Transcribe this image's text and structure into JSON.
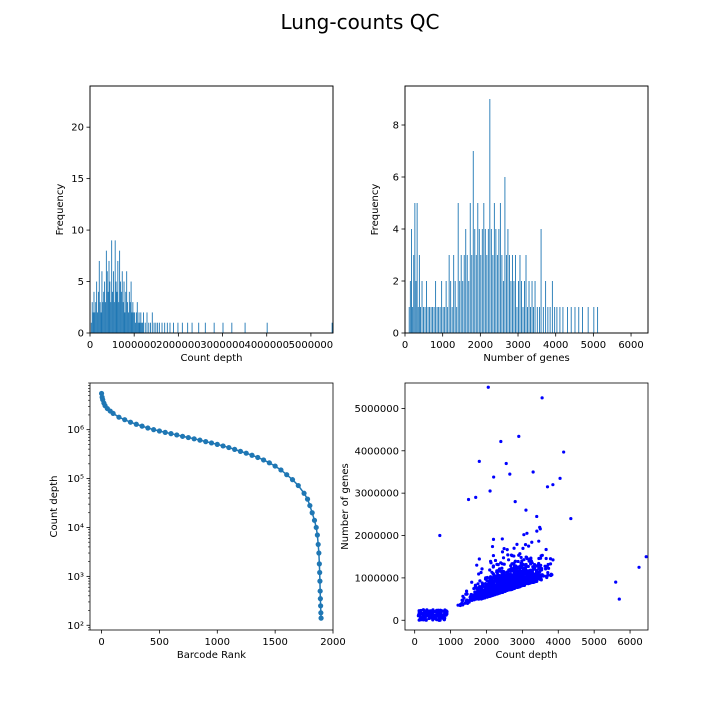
{
  "figure": {
    "title": "Lung-counts QC"
  },
  "colors": {
    "bar": "#1f77b4",
    "rank": "#1f77b4",
    "scatter": "#0000ff"
  },
  "chart_data": [
    {
      "id": "hist_count_depth",
      "type": "bar",
      "title": "",
      "xlabel": "Count depth",
      "ylabel": "Frequency",
      "xlim": [
        0,
        5500000
      ],
      "ylim": [
        0,
        24
      ],
      "xticks": [
        0,
        1000000,
        2000000,
        3000000,
        4000000,
        5000000
      ],
      "yticks": [
        0,
        5,
        10,
        15,
        20
      ],
      "bin_width": 10000,
      "bins": [
        [
          20000,
          1
        ],
        [
          40000,
          3
        ],
        [
          60000,
          2
        ],
        [
          80000,
          4
        ],
        [
          100000,
          2
        ],
        [
          120000,
          3
        ],
        [
          140000,
          5
        ],
        [
          160000,
          2
        ],
        [
          180000,
          4
        ],
        [
          200000,
          7
        ],
        [
          220000,
          3
        ],
        [
          240000,
          2
        ],
        [
          260000,
          6
        ],
        [
          280000,
          3
        ],
        [
          300000,
          4
        ],
        [
          320000,
          5
        ],
        [
          340000,
          3
        ],
        [
          360000,
          8
        ],
        [
          380000,
          6
        ],
        [
          400000,
          4
        ],
        [
          420000,
          7
        ],
        [
          440000,
          5
        ],
        [
          460000,
          3
        ],
        [
          480000,
          9
        ],
        [
          500000,
          4
        ],
        [
          520000,
          6
        ],
        [
          540000,
          3
        ],
        [
          560000,
          9
        ],
        [
          580000,
          5
        ],
        [
          600000,
          4
        ],
        [
          620000,
          7
        ],
        [
          640000,
          3
        ],
        [
          660000,
          8
        ],
        [
          680000,
          5
        ],
        [
          700000,
          4
        ],
        [
          720000,
          6
        ],
        [
          740000,
          3
        ],
        [
          760000,
          5
        ],
        [
          780000,
          2
        ],
        [
          800000,
          4
        ],
        [
          820000,
          6
        ],
        [
          840000,
          3
        ],
        [
          860000,
          2
        ],
        [
          880000,
          4
        ],
        [
          900000,
          3
        ],
        [
          920000,
          5
        ],
        [
          940000,
          2
        ],
        [
          960000,
          3
        ],
        [
          980000,
          2
        ],
        [
          1000000,
          2
        ],
        [
          1020000,
          1
        ],
        [
          1040000,
          2
        ],
        [
          1060000,
          3
        ],
        [
          1080000,
          1
        ],
        [
          1100000,
          2
        ],
        [
          1120000,
          1
        ],
        [
          1140000,
          2
        ],
        [
          1160000,
          1
        ],
        [
          1180000,
          1
        ],
        [
          1200000,
          2
        ],
        [
          1240000,
          1
        ],
        [
          1280000,
          2
        ],
        [
          1320000,
          1
        ],
        [
          1360000,
          1
        ],
        [
          1400000,
          2
        ],
        [
          1440000,
          1
        ],
        [
          1480000,
          1
        ],
        [
          1520000,
          1
        ],
        [
          1560000,
          1
        ],
        [
          1620000,
          1
        ],
        [
          1680000,
          1
        ],
        [
          1740000,
          1
        ],
        [
          1800000,
          1
        ],
        [
          1880000,
          1
        ],
        [
          1980000,
          1
        ],
        [
          2080000,
          1
        ],
        [
          2200000,
          1
        ],
        [
          2300000,
          1
        ],
        [
          2450000,
          1
        ],
        [
          2600000,
          1
        ],
        [
          2800000,
          1
        ],
        [
          3000000,
          1
        ],
        [
          3200000,
          1
        ],
        [
          3500000,
          1
        ],
        [
          4000000,
          1
        ],
        [
          5470000,
          1
        ]
      ]
    },
    {
      "id": "hist_num_genes",
      "type": "bar",
      "title": "",
      "xlabel": "Number of genes",
      "ylabel": "Frequency",
      "xlim": [
        0,
        6450
      ],
      "ylim": [
        0,
        9.5
      ],
      "xticks": [
        0,
        1000,
        2000,
        3000,
        4000,
        5000,
        6000
      ],
      "yticks": [
        0,
        2,
        4,
        6,
        8
      ],
      "bin_width": 12,
      "bins": [
        [
          100,
          1
        ],
        [
          130,
          2
        ],
        [
          160,
          4
        ],
        [
          190,
          1
        ],
        [
          220,
          3
        ],
        [
          250,
          5
        ],
        [
          280,
          2
        ],
        [
          310,
          5
        ],
        [
          340,
          1
        ],
        [
          370,
          3
        ],
        [
          400,
          1
        ],
        [
          440,
          2
        ],
        [
          480,
          1
        ],
        [
          520,
          1
        ],
        [
          560,
          2
        ],
        [
          600,
          1
        ],
        [
          640,
          1
        ],
        [
          680,
          1
        ],
        [
          720,
          1
        ],
        [
          760,
          1
        ],
        [
          800,
          2
        ],
        [
          840,
          1
        ],
        [
          880,
          1
        ],
        [
          920,
          1
        ],
        [
          960,
          2
        ],
        [
          1000,
          1
        ],
        [
          1040,
          1
        ],
        [
          1080,
          2
        ],
        [
          1120,
          1
        ],
        [
          1160,
          3
        ],
        [
          1200,
          2
        ],
        [
          1240,
          1
        ],
        [
          1280,
          3
        ],
        [
          1320,
          2
        ],
        [
          1360,
          1
        ],
        [
          1400,
          5
        ],
        [
          1440,
          2
        ],
        [
          1480,
          3
        ],
        [
          1520,
          2
        ],
        [
          1560,
          3
        ],
        [
          1600,
          4
        ],
        [
          1640,
          3
        ],
        [
          1680,
          2
        ],
        [
          1720,
          5
        ],
        [
          1760,
          3
        ],
        [
          1800,
          7
        ],
        [
          1840,
          4
        ],
        [
          1880,
          3
        ],
        [
          1920,
          5
        ],
        [
          1960,
          4
        ],
        [
          2000,
          3
        ],
        [
          2040,
          4
        ],
        [
          2080,
          5
        ],
        [
          2120,
          4
        ],
        [
          2160,
          3
        ],
        [
          2200,
          4
        ],
        [
          2240,
          9
        ],
        [
          2280,
          4
        ],
        [
          2320,
          3
        ],
        [
          2360,
          5
        ],
        [
          2400,
          4
        ],
        [
          2440,
          3
        ],
        [
          2480,
          4
        ],
        [
          2520,
          5
        ],
        [
          2560,
          3
        ],
        [
          2600,
          2
        ],
        [
          2640,
          6
        ],
        [
          2680,
          3
        ],
        [
          2720,
          4
        ],
        [
          2760,
          3
        ],
        [
          2800,
          2
        ],
        [
          2840,
          3
        ],
        [
          2880,
          2
        ],
        [
          2920,
          3
        ],
        [
          2960,
          1
        ],
        [
          3000,
          2
        ],
        [
          3040,
          3
        ],
        [
          3080,
          2
        ],
        [
          3120,
          1
        ],
        [
          3160,
          2
        ],
        [
          3200,
          3
        ],
        [
          3240,
          1
        ],
        [
          3280,
          2
        ],
        [
          3320,
          1
        ],
        [
          3360,
          2
        ],
        [
          3400,
          1
        ],
        [
          3440,
          2
        ],
        [
          3500,
          1
        ],
        [
          3560,
          1
        ],
        [
          3600,
          4
        ],
        [
          3660,
          1
        ],
        [
          3720,
          2
        ],
        [
          3780,
          1
        ],
        [
          3840,
          1
        ],
        [
          3900,
          2
        ],
        [
          3960,
          1
        ],
        [
          4020,
          1
        ],
        [
          4100,
          1
        ],
        [
          4180,
          1
        ],
        [
          4300,
          1
        ],
        [
          4400,
          1
        ],
        [
          4500,
          1
        ],
        [
          4600,
          1
        ],
        [
          4700,
          1
        ],
        [
          4850,
          1
        ],
        [
          5000,
          1
        ],
        [
          5100,
          1
        ]
      ]
    },
    {
      "id": "barcode_rank",
      "type": "line",
      "title": "",
      "xlabel": "Barcode Rank",
      "ylabel": "Count depth",
      "xlim": [
        -100,
        2000
      ],
      "ylim": [
        80,
        9000000
      ],
      "yscale": "log",
      "xticks": [
        0,
        500,
        1000,
        1500,
        2000
      ],
      "yticks": [
        100,
        1000,
        10000,
        100000,
        1000000
      ],
      "ytick_labels": [
        "10²",
        "10³",
        "10⁴",
        "10⁵",
        "10⁶"
      ],
      "points": [
        [
          0,
          5500000
        ],
        [
          5,
          4600000
        ],
        [
          10,
          4100000
        ],
        [
          20,
          3500000
        ],
        [
          30,
          3100000
        ],
        [
          50,
          2700000
        ],
        [
          75,
          2400000
        ],
        [
          100,
          2150000
        ],
        [
          150,
          1800000
        ],
        [
          200,
          1600000
        ],
        [
          250,
          1420000
        ],
        [
          300,
          1290000
        ],
        [
          350,
          1180000
        ],
        [
          400,
          1080000
        ],
        [
          450,
          1000000
        ],
        [
          500,
          940000
        ],
        [
          550,
          880000
        ],
        [
          600,
          830000
        ],
        [
          650,
          780000
        ],
        [
          700,
          730000
        ],
        [
          750,
          690000
        ],
        [
          800,
          650000
        ],
        [
          850,
          610000
        ],
        [
          900,
          570000
        ],
        [
          950,
          535000
        ],
        [
          1000,
          500000
        ],
        [
          1050,
          465000
        ],
        [
          1100,
          430000
        ],
        [
          1150,
          395000
        ],
        [
          1200,
          360000
        ],
        [
          1250,
          330000
        ],
        [
          1300,
          300000
        ],
        [
          1350,
          270000
        ],
        [
          1400,
          240000
        ],
        [
          1450,
          210000
        ],
        [
          1500,
          180000
        ],
        [
          1550,
          150000
        ],
        [
          1600,
          120000
        ],
        [
          1650,
          95000
        ],
        [
          1700,
          72000
        ],
        [
          1750,
          50000
        ],
        [
          1780,
          38000
        ],
        [
          1800,
          28000
        ],
        [
          1820,
          20000
        ],
        [
          1840,
          14000
        ],
        [
          1855,
          10000
        ],
        [
          1865,
          7000
        ],
        [
          1872,
          4500
        ],
        [
          1878,
          3000
        ],
        [
          1882,
          1800
        ],
        [
          1885,
          1200
        ],
        [
          1887,
          800
        ],
        [
          1889,
          500
        ],
        [
          1891,
          350
        ],
        [
          1893,
          250
        ],
        [
          1895,
          180
        ],
        [
          1897,
          140
        ]
      ]
    },
    {
      "id": "scatter_depth_genes",
      "type": "scatter",
      "title": "",
      "xlabel": "Count depth",
      "ylabel": "Number of genes",
      "xlim": [
        -270,
        6500
      ],
      "ylim": [
        -230000,
        5600000
      ],
      "xticks": [
        0,
        1000,
        2000,
        3000,
        4000,
        5000,
        6000
      ],
      "yticks": [
        0,
        1000000,
        2000000,
        3000000,
        4000000,
        5000000
      ],
      "point_summary": "Dense cloud centred near x≈2500 (x range about 100–6400), y mostly 0–2000000, with scattered outliers up to about 5500000",
      "outliers": [
        [
          2050,
          5500000
        ],
        [
          3550,
          5250000
        ],
        [
          2400,
          4220000
        ],
        [
          2900,
          4340000
        ],
        [
          4150,
          3970000
        ],
        [
          1800,
          3750000
        ],
        [
          2550,
          3700000
        ],
        [
          3300,
          3500000
        ],
        [
          2650,
          3450000
        ],
        [
          2200,
          3380000
        ],
        [
          3850,
          3200000
        ],
        [
          1500,
          2850000
        ],
        [
          2100,
          3050000
        ],
        [
          4350,
          2400000
        ],
        [
          700,
          2000000
        ],
        [
          6450,
          1500000
        ],
        [
          6250,
          1250000
        ],
        [
          5600,
          900000
        ],
        [
          5700,
          500000
        ],
        [
          3700,
          3150000
        ],
        [
          4050,
          3350000
        ],
        [
          1700,
          2900000
        ],
        [
          3100,
          2600000
        ],
        [
          2800,
          2800000
        ],
        [
          3400,
          2450000
        ]
      ]
    }
  ]
}
